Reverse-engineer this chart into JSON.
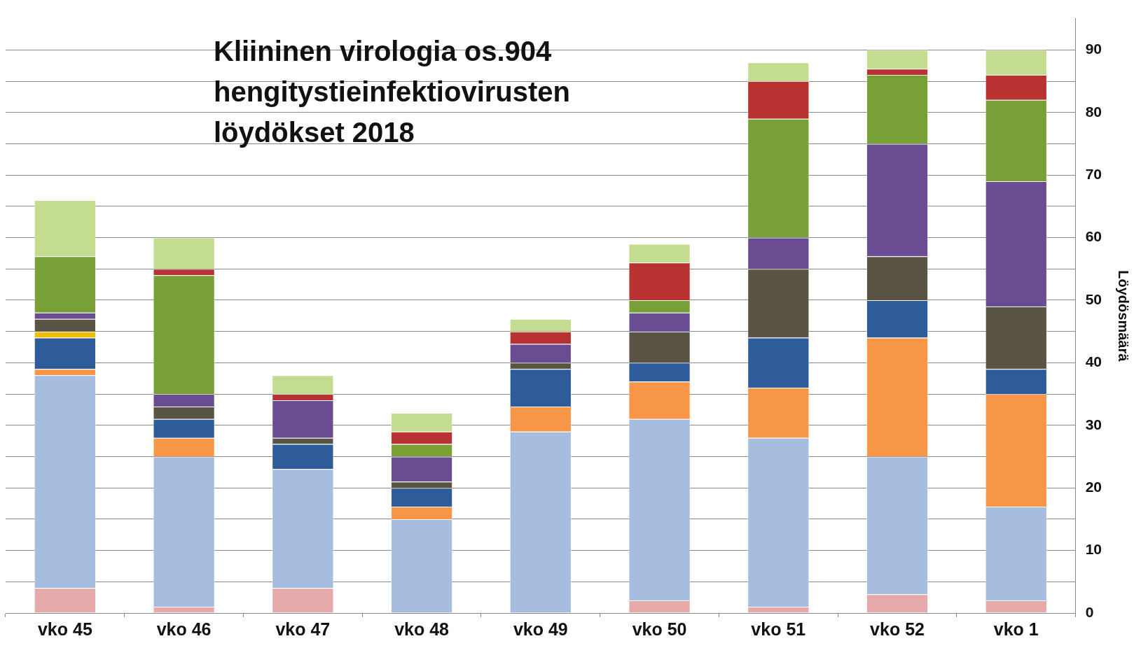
{
  "chart_data": {
    "type": "bar",
    "title": "Kliininen virologia os.904\nhengitystieinfektiovirusten\nlöydökset 2018",
    "ylabel": "Löydösmäärä",
    "categories": [
      "vko 45",
      "vko 46",
      "vko 47",
      "vko 48",
      "vko 49",
      "vko 50",
      "vko 51",
      "vko 52",
      "vko 1"
    ],
    "stacked": true,
    "grid": "y",
    "legend": false,
    "ylim": [
      0,
      95
    ],
    "yticks": [
      0,
      {
        "value": 5,
        "label": null
      },
      10,
      {
        "value": 15,
        "label": null
      },
      20,
      {
        "value": 25,
        "label": null
      },
      30,
      {
        "value": 35,
        "label": null
      },
      40,
      {
        "value": 45,
        "label": null
      },
      50,
      {
        "value": 55,
        "label": null
      },
      60,
      {
        "value": 65,
        "label": null
      },
      70,
      {
        "value": 75,
        "label": null
      },
      80,
      {
        "value": 85,
        "label": null
      },
      90
    ],
    "series": [
      {
        "color": "#e6a9a9",
        "values": [
          4,
          1,
          4,
          0,
          0,
          2,
          1,
          3,
          2
        ]
      },
      {
        "color": "#a7bde0",
        "values": [
          34,
          24,
          19,
          15,
          29,
          29,
          27,
          22,
          15
        ]
      },
      {
        "color": "#f79646",
        "values": [
          1,
          3,
          0,
          2,
          4,
          6,
          8,
          19,
          18
        ]
      },
      {
        "color": "#2e5c9a",
        "values": [
          5,
          3,
          4,
          3,
          6,
          3,
          8,
          6,
          4
        ]
      },
      {
        "color": "#f0c000",
        "values": [
          1,
          0,
          0,
          0,
          0,
          0,
          0,
          0,
          0
        ]
      },
      {
        "color": "#5a5444",
        "values": [
          2,
          2,
          1,
          1,
          1,
          5,
          11,
          7,
          10
        ]
      },
      {
        "color": "#6a4c93",
        "values": [
          1,
          2,
          6,
          4,
          3,
          3,
          5,
          18,
          20
        ]
      },
      {
        "color": "#77a037",
        "values": [
          9,
          19,
          0,
          2,
          0,
          2,
          19,
          11,
          13
        ]
      },
      {
        "color": "#b83232",
        "values": [
          0,
          1,
          1,
          2,
          2,
          6,
          6,
          1,
          4
        ]
      },
      {
        "color": "#c3dc8f",
        "values": [
          9,
          5,
          3,
          3,
          2,
          3,
          3,
          3,
          4
        ]
      }
    ]
  }
}
